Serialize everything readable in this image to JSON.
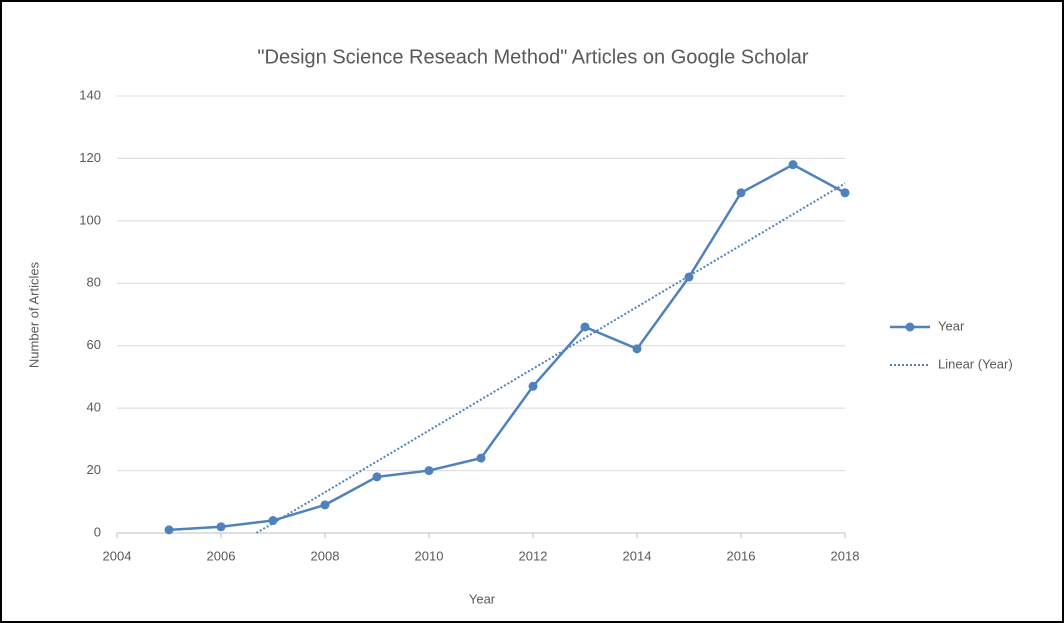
{
  "chart_data": {
    "type": "line",
    "title": "\"Design Science Reseach Method\" Articles on Google Scholar",
    "x_label": "Year",
    "y_label": "Number of Articles",
    "x": [
      2005,
      2006,
      2007,
      2008,
      2009,
      2010,
      2011,
      2012,
      2013,
      2014,
      2015,
      2016,
      2017,
      2018
    ],
    "series": [
      {
        "name": "Year",
        "color": "#4f81bd",
        "values": [
          1,
          2,
          4,
          9,
          18,
          20,
          24,
          47,
          66,
          59,
          82,
          109,
          118,
          109
        ]
      },
      {
        "name": "Linear (Year)",
        "color": "#4f81bd",
        "trend": true,
        "x": [
          2006.68,
          2018
        ],
        "values": [
          0,
          112
        ]
      }
    ],
    "xlim": [
      2004,
      2018
    ],
    "xticks": [
      2004,
      2006,
      2008,
      2010,
      2012,
      2014,
      2016,
      2018
    ],
    "ylim": [
      0,
      140
    ],
    "yticks": [
      0,
      20,
      40,
      60,
      80,
      100,
      120,
      140
    ],
    "grid": true,
    "legend": "right"
  }
}
